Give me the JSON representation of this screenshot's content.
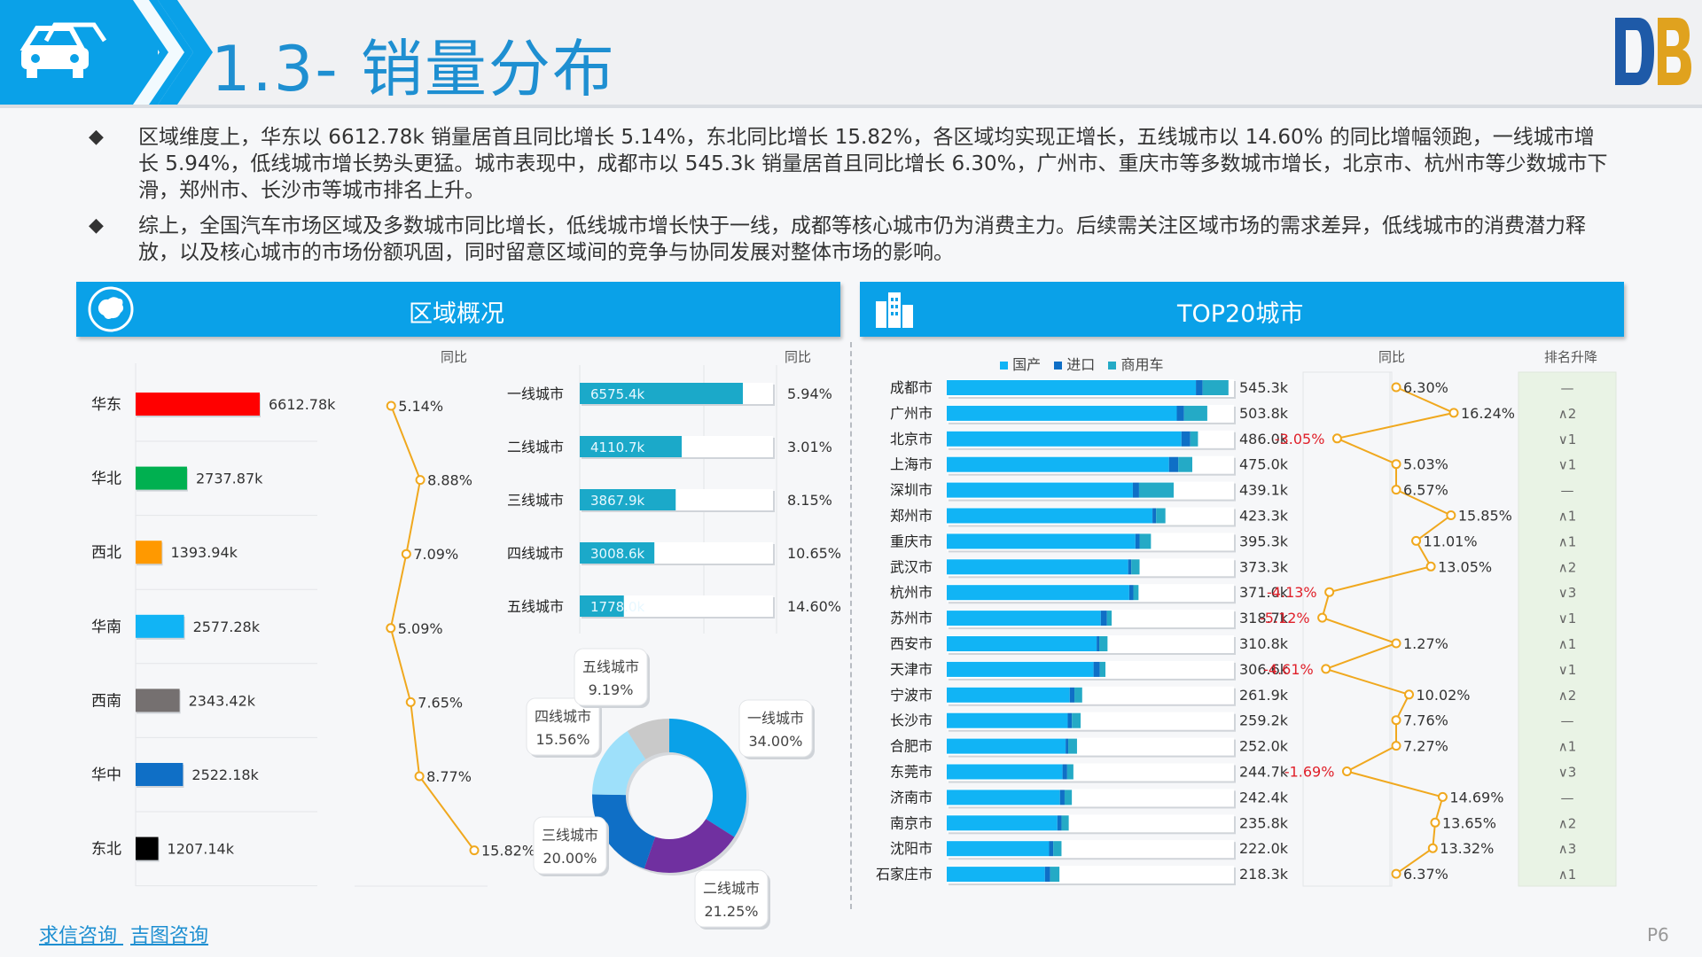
{
  "page": {
    "title": "1.3- 销量分布",
    "page_number": "P6",
    "footer_links": [
      "求信咨询",
      "吉图咨询"
    ],
    "bullets": [
      "区域维度上，华东以 6612.78k 销量居首且同比增长 5.14%，东北同比增长 15.82%，各区域均实现正增长，五线城市以 14.60% 的同比增幅领跑，一线城市增长 5.94%，低线城市增长势头更猛。城市表现中，成都市以 545.3k 销量居首且同比增长 6.30%，广州市、重庆市等多数城市增长，北京市、杭州市等少数城市下滑，郑州市、长沙市等城市排名上升。",
      "综上，全国汽车市场区域及多数城市同比增长，低线城市增长快于一线，成都等核心城市仍为消费主力。后续需关注区域市场的需求差异，低线城市的消费潜力释放，以及核心城市的市场份额巩固，同时留意区域间的竞争与协同发展对整体市场的影响。"
    ],
    "colors": {
      "accent": "#0aa1e8",
      "title": "#1e8fd1",
      "negative": "#e0202a",
      "line": "#f0a81e"
    }
  },
  "region_panel": {
    "title": "区域概况",
    "yoy_label": "同比",
    "icon": "china-map-icon"
  },
  "city_panel": {
    "title": "TOP20城市",
    "yoy_label": "同比",
    "rank_label": "排名升降",
    "icon": "city-buildings-icon",
    "legend": [
      "国产",
      "进口",
      "商用车"
    ]
  },
  "chart_data": [
    {
      "type": "bar",
      "id": "region-sales",
      "categories": [
        "华东",
        "华北",
        "西北",
        "华南",
        "西南",
        "华中",
        "东北"
      ],
      "values": [
        6612.78,
        2737.87,
        1393.94,
        2577.28,
        2343.42,
        2522.18,
        1207.14
      ],
      "value_labels": [
        "6612.78k",
        "2737.87k",
        "1393.94k",
        "2577.28k",
        "2343.42k",
        "2522.18k",
        "1207.14k"
      ],
      "colors": [
        "#ff0000",
        "#00b050",
        "#ff9900",
        "#11b4f5",
        "#757070",
        "#0f6fc6",
        "#000000"
      ],
      "yoy": [
        5.14,
        8.88,
        7.09,
        5.09,
        7.65,
        8.77,
        15.82
      ],
      "yoy_labels": [
        "5.14%",
        "8.88%",
        "7.09%",
        "5.09%",
        "7.65%",
        "8.77%",
        "15.82%"
      ]
    },
    {
      "type": "bar",
      "id": "city-tier-sales",
      "categories": [
        "一线城市",
        "二线城市",
        "三线城市",
        "四线城市",
        "五线城市"
      ],
      "values": [
        6575.4,
        4110.7,
        3867.9,
        3008.6,
        1778.0
      ],
      "value_labels": [
        "6575.4k",
        "4110.7k",
        "3867.9k",
        "3008.6k",
        "1778.0k"
      ],
      "yoy_labels": [
        "5.94%",
        "3.01%",
        "8.15%",
        "10.65%",
        "14.60%"
      ]
    },
    {
      "type": "pie",
      "id": "city-tier-share",
      "labels": [
        "一线城市",
        "二线城市",
        "三线城市",
        "四线城市",
        "五线城市"
      ],
      "values": [
        34.0,
        21.25,
        20.0,
        15.56,
        9.19
      ],
      "value_labels": [
        "34.00%",
        "21.25%",
        "20.00%",
        "15.56%",
        "9.19%"
      ],
      "colors": [
        "#0aa1e8",
        "#7030a0",
        "#0f6fc6",
        "#9ee0fa",
        "#c9c9c9"
      ]
    },
    {
      "type": "bar",
      "id": "top20-cities",
      "categories": [
        "成都市",
        "广州市",
        "北京市",
        "上海市",
        "深圳市",
        "郑州市",
        "重庆市",
        "武汉市",
        "杭州市",
        "苏州市",
        "西安市",
        "天津市",
        "宁波市",
        "长沙市",
        "合肥市",
        "东莞市",
        "济南市",
        "南京市",
        "沈阳市",
        "石家庄市"
      ],
      "totals": [
        545.3,
        503.8,
        486.0,
        475.0,
        439.1,
        423.3,
        395.3,
        373.3,
        371.0,
        318.7,
        310.8,
        306.6,
        261.9,
        259.2,
        252.0,
        244.7,
        242.4,
        235.8,
        222.0,
        218.3
      ],
      "total_labels": [
        "545.3k",
        "503.8k",
        "486.0k",
        "475.0k",
        "439.1k",
        "423.3k",
        "395.3k",
        "373.3k",
        "371.0k",
        "318.7k",
        "310.8k",
        "306.6k",
        "261.9k",
        "259.2k",
        "252.0k",
        "244.7k",
        "242.4k",
        "235.8k",
        "222.0k",
        "218.3k"
      ],
      "series": [
        {
          "name": "国产",
          "color": "#11b4f5",
          "values": [
            482,
            445,
            454,
            430,
            360,
            398,
            365,
            351,
            353,
            298,
            290,
            284,
            238,
            234,
            230,
            224,
            219,
            214,
            198,
            190
          ]
        },
        {
          "name": "进口",
          "color": "#0f6fc6",
          "values": [
            13,
            14,
            17,
            18,
            12,
            7,
            8,
            6,
            8,
            12,
            5,
            12,
            9,
            8,
            5,
            9,
            9,
            8,
            8,
            10
          ]
        },
        {
          "name": "商用车",
          "color": "#24aac6",
          "values": [
            50,
            45,
            15,
            27,
            67,
            18,
            22,
            16,
            10,
            9,
            16,
            11,
            15,
            17,
            17,
            12,
            14,
            14,
            16,
            18
          ]
        }
      ],
      "yoy": [
        6.3,
        16.24,
        -3.05,
        5.03,
        6.57,
        15.85,
        11.01,
        13.05,
        -4.13,
        -5.12,
        1.27,
        -4.61,
        10.02,
        7.76,
        7.27,
        -1.69,
        14.69,
        13.65,
        13.32,
        6.37
      ],
      "yoy_labels": [
        "6.30%",
        "16.24%",
        "-3.05%",
        "5.03%",
        "6.57%",
        "15.85%",
        "11.01%",
        "13.05%",
        "-4.13%",
        "-5.12%",
        "1.27%",
        "-4.61%",
        "10.02%",
        "7.76%",
        "7.27%",
        "-1.69%",
        "14.69%",
        "13.65%",
        "13.32%",
        "6.37%"
      ],
      "rank_change": [
        "—",
        "∧2",
        "∨1",
        "∨1",
        "—",
        "∧1",
        "∧1",
        "∧2",
        "∨3",
        "∨1",
        "∧1",
        "∨1",
        "∧2",
        "—",
        "∧1",
        "∨3",
        "—",
        "∧2",
        "∧3",
        "∧1"
      ]
    }
  ]
}
